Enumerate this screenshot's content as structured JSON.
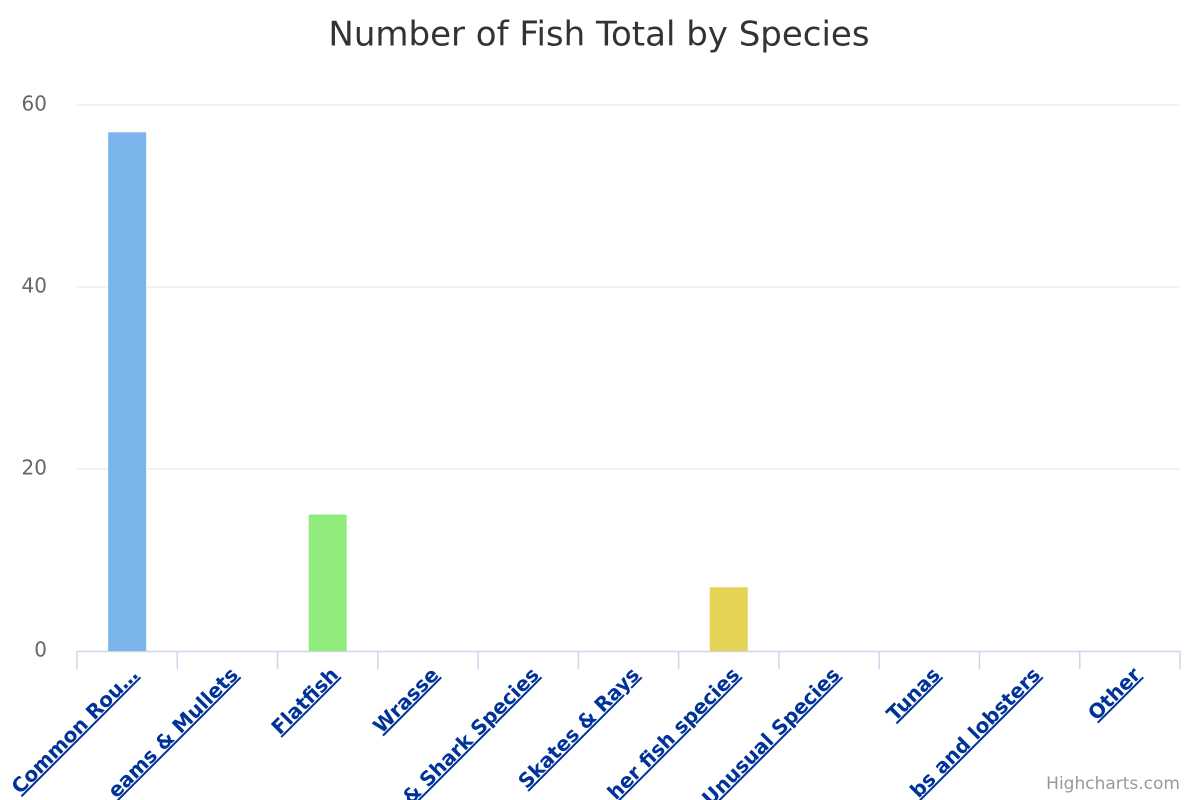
{
  "chart_data": {
    "type": "bar",
    "title": "Number of Fish Total by Species",
    "categories": [
      "Common Rou…",
      "eams & Mullets",
      "Flatfish",
      "Wrasse",
      "& Shark Species",
      "Skates & Rays",
      "her fish species",
      "Unusual Species",
      "Tunas",
      "bs and lobsters",
      "Other"
    ],
    "values": [
      57,
      0,
      15,
      0,
      0,
      0,
      7,
      0,
      0,
      0,
      0
    ],
    "colors": [
      "#7cb5ec",
      "#434348",
      "#90ed7d",
      "#f7a35c",
      "#8085e9",
      "#f15c80",
      "#e4d354",
      "#2b908f",
      "#f45b5b",
      "#91e8e1",
      "#7cb5ec"
    ],
    "ylim": [
      0,
      60
    ],
    "yticks": [
      0,
      20,
      40,
      60
    ],
    "grid": true,
    "credits": "Highcharts.com"
  }
}
